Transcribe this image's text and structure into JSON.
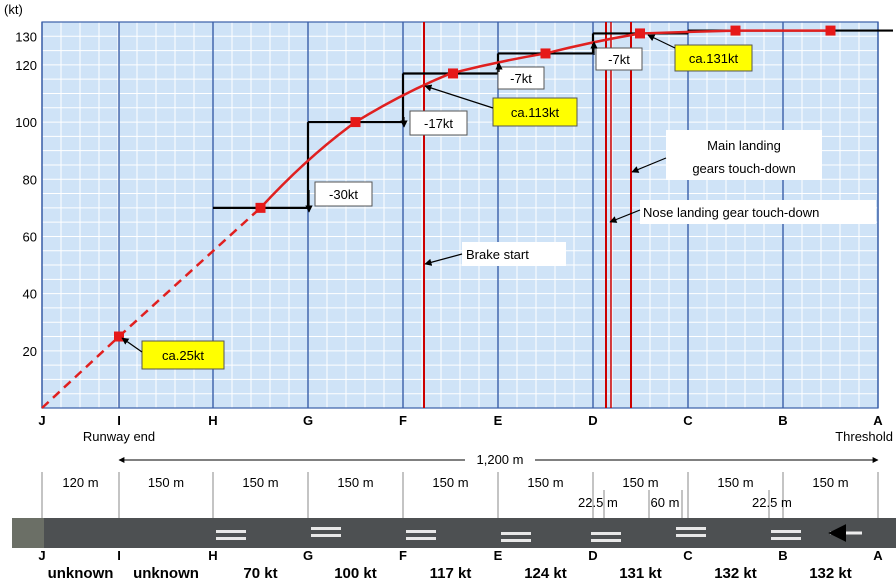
{
  "chart_data": {
    "type": "line",
    "y_unit": "(kt)",
    "ylim": [
      0,
      135
    ],
    "yticks": [
      20,
      40,
      60,
      80,
      100,
      120,
      130
    ],
    "grid": true,
    "station_letters": [
      "J",
      "I",
      "H",
      "G",
      "F",
      "E",
      "D",
      "C",
      "B",
      "A"
    ],
    "runway_end_label": "Runway end",
    "threshold_label": "Threshold",
    "total_distance_label": "1,200 m",
    "segment_labels": [
      "120 m",
      "150 m",
      "150 m",
      "150 m",
      "150 m",
      "150 m",
      "150 m",
      "150 m",
      "150 m"
    ],
    "touchdown_offsets": [
      "22.5",
      "60 m",
      "22.5"
    ],
    "offset_unit": "m",
    "segment_speeds": [
      "unknown",
      "unknown",
      "70 kt",
      "100 kt",
      "117 kt",
      "124 kt",
      "131 kt",
      "132 kt",
      "132 kt"
    ],
    "series": [
      {
        "type": "line",
        "color": "#e02020",
        "points": [
          {
            "station": "J",
            "kt": 0
          },
          {
            "station": "I",
            "kt": 25
          },
          {
            "station": "H+G",
            "kt": 70
          },
          {
            "station": "G+F",
            "kt": 100
          },
          {
            "station": "F+E",
            "kt": 117
          },
          {
            "station": "E+D",
            "kt": 124
          },
          {
            "station": "D+C",
            "kt": 131
          },
          {
            "station": "C+B",
            "kt": 132
          },
          {
            "station": "B+A",
            "kt": 132
          }
        ]
      },
      {
        "type": "step",
        "color": "#000000",
        "values": [
          70,
          100,
          117,
          124,
          131,
          132
        ]
      }
    ],
    "markers_kt": [
      25,
      70,
      100,
      117,
      124,
      131,
      132,
      132
    ],
    "step_annotations": [
      "-30kt",
      "-17kt",
      "-7kt",
      "-7kt"
    ],
    "callouts": [
      "ca.25kt",
      "ca.113kt",
      "ca.131kt"
    ],
    "event_lines": [
      {
        "label": "Brake start",
        "color": "#cc0000"
      },
      {
        "label": "Nose landing gear touch-down",
        "color": "#cc0000"
      },
      {
        "label_lines": [
          "Main landing",
          "gears touch-down"
        ],
        "color": "#cc0000"
      }
    ],
    "callout_color": "#ffff00",
    "line_color": "#e02020"
  }
}
